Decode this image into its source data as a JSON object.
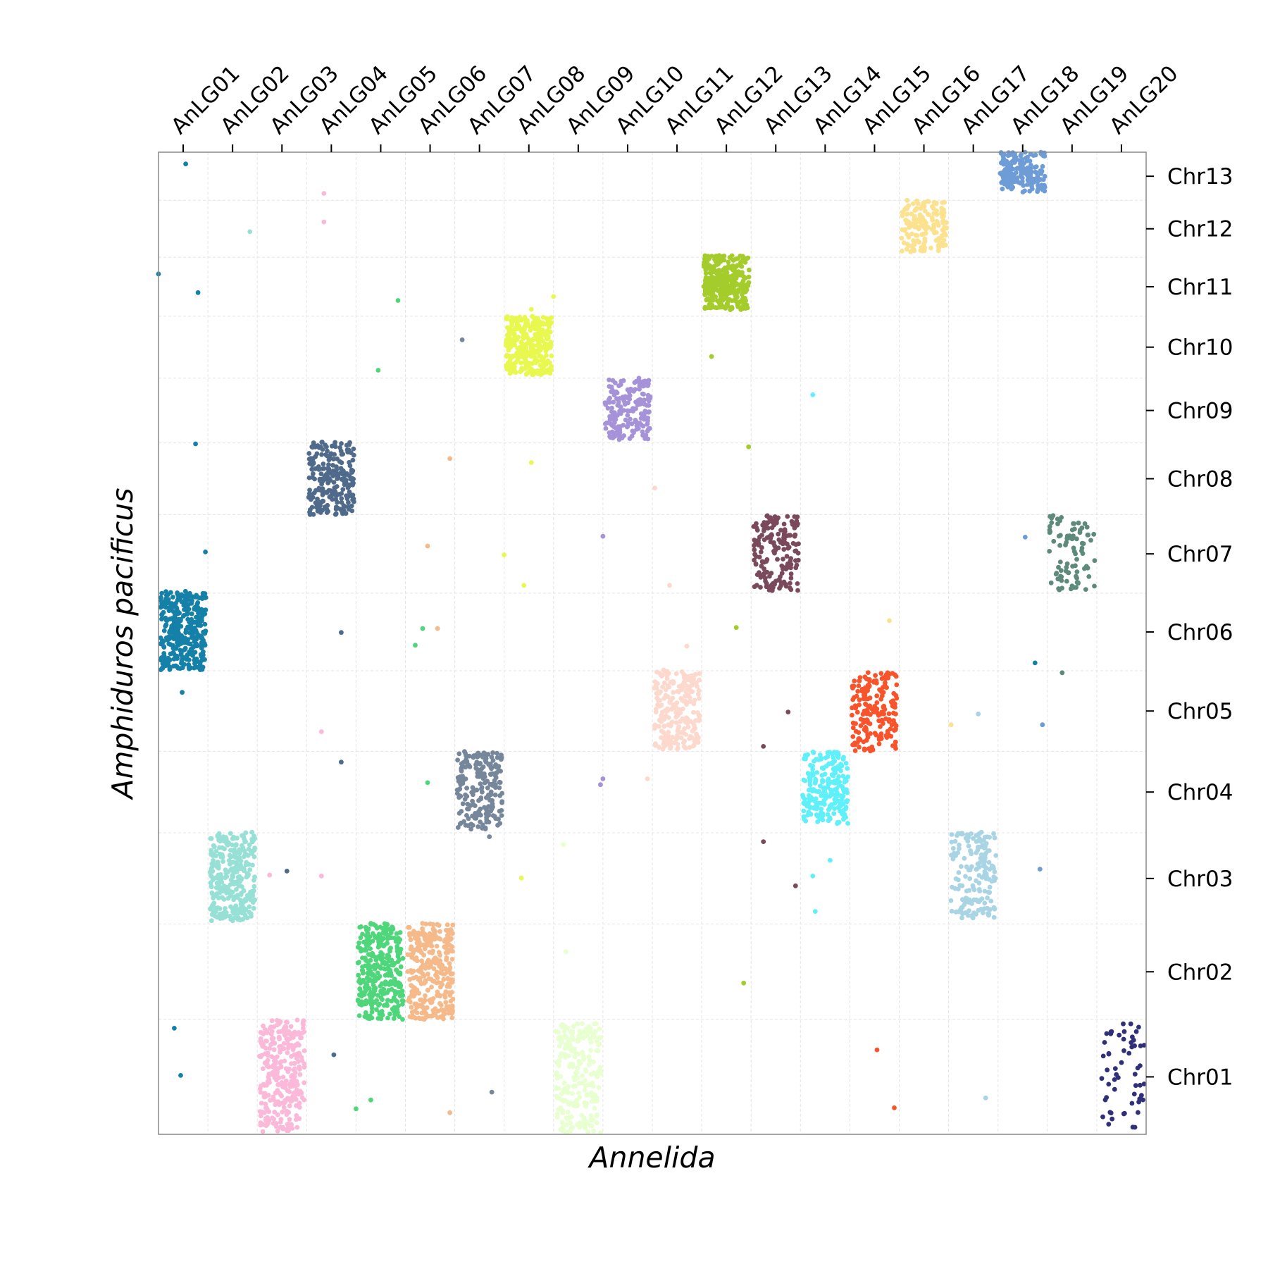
{
  "chart_data": {
    "type": "scatter",
    "title": "",
    "xlabel": "Annelida",
    "ylabel": "Amphiduros pacificus",
    "x_tick_labels": [
      "AnLG01",
      "AnLG02",
      "AnLG03",
      "AnLG04",
      "AnLG05",
      "AnLG06",
      "AnLG07",
      "AnLG08",
      "AnLG09",
      "AnLG10",
      "AnLG11",
      "AnLG12",
      "AnLG13",
      "AnLG14",
      "AnLG15",
      "AnLG16",
      "AnLG17",
      "AnLG18",
      "AnLG19",
      "AnLG20"
    ],
    "y_tick_labels": [
      "Chr01",
      "Chr02",
      "Chr03",
      "Chr04",
      "Chr05",
      "Chr06",
      "Chr07",
      "Chr08",
      "Chr09",
      "Chr10",
      "Chr11",
      "Chr12",
      "Chr13"
    ],
    "x_axis_position": "top",
    "y_axis_position": "right",
    "xlim": [
      0.5,
      20.5
    ],
    "ylim": [
      0,
      100
    ],
    "grid": true,
    "x_group_bounds": [
      [
        0.5,
        1.5
      ],
      [
        1.5,
        2.5
      ],
      [
        2.5,
        3.5
      ],
      [
        3.5,
        4.5
      ],
      [
        4.5,
        5.5
      ],
      [
        5.5,
        6.5
      ],
      [
        6.5,
        7.5
      ],
      [
        7.5,
        8.5
      ],
      [
        8.5,
        9.5
      ],
      [
        9.5,
        10.5
      ],
      [
        10.5,
        11.5
      ],
      [
        11.5,
        12.5
      ],
      [
        12.5,
        13.5
      ],
      [
        13.5,
        14.5
      ],
      [
        14.5,
        15.5
      ],
      [
        15.5,
        16.5
      ],
      [
        16.5,
        17.5
      ],
      [
        17.5,
        18.5
      ],
      [
        18.5,
        19.5
      ],
      [
        19.5,
        20.5
      ]
    ],
    "y_group_bounds": [
      [
        0,
        11.7
      ],
      [
        11.7,
        21.4
      ],
      [
        21.4,
        30.7
      ],
      [
        30.7,
        39.0
      ],
      [
        39.0,
        47.2
      ],
      [
        47.2,
        55.1
      ],
      [
        55.1,
        63.1
      ],
      [
        63.1,
        70.4
      ],
      [
        70.4,
        77.0
      ],
      [
        77.0,
        83.3
      ],
      [
        83.3,
        89.3
      ],
      [
        89.3,
        95.1
      ],
      [
        95.1,
        100
      ]
    ],
    "clusters": [
      {
        "xg": "AnLG01",
        "yg": "Chr06",
        "x": [
          0.5,
          1.5
        ],
        "y": [
          47.3,
          55.3
        ],
        "n": 360,
        "color": "#1580a8"
      },
      {
        "xg": "AnLG02",
        "yg": "Chr03",
        "x": [
          1.5,
          2.5
        ],
        "y": [
          21.7,
          30.8
        ],
        "n": 320,
        "color": "#96e0d6"
      },
      {
        "xg": "AnLG03",
        "yg": "Chr01",
        "x": [
          2.5,
          3.5
        ],
        "y": [
          0.1,
          11.7
        ],
        "n": 300,
        "color": "#fbb8d8"
      },
      {
        "xg": "AnLG04",
        "yg": "Chr08",
        "x": [
          3.5,
          4.5
        ],
        "y": [
          63.1,
          70.5
        ],
        "n": 240,
        "color": "#4f6a8a"
      },
      {
        "xg": "AnLG05",
        "yg": "Chr02",
        "x": [
          4.5,
          5.5
        ],
        "y": [
          11.7,
          21.5
        ],
        "n": 320,
        "color": "#4fd67a"
      },
      {
        "xg": "AnLG06",
        "yg": "Chr02",
        "x": [
          5.5,
          6.5
        ],
        "y": [
          11.7,
          21.5
        ],
        "n": 320,
        "color": "#f5b98a"
      },
      {
        "xg": "AnLG07",
        "yg": "Chr04",
        "x": [
          6.5,
          7.5
        ],
        "y": [
          31.0,
          39.0
        ],
        "n": 210,
        "color": "#76879b"
      },
      {
        "xg": "AnLG08",
        "yg": "Chr10",
        "x": [
          7.5,
          8.5
        ],
        "y": [
          77.3,
          83.3
        ],
        "n": 330,
        "color": "#e8f84f"
      },
      {
        "xg": "AnLG09",
        "yg": "Chr01",
        "x": [
          8.5,
          9.5
        ],
        "y": [
          0.1,
          11.3
        ],
        "n": 240,
        "color": "#e8ffd0"
      },
      {
        "xg": "AnLG10",
        "yg": "Chr09",
        "x": [
          9.5,
          10.5
        ],
        "y": [
          70.7,
          77.0
        ],
        "n": 190,
        "color": "#a592d8"
      },
      {
        "xg": "AnLG11",
        "yg": "Chr05",
        "x": [
          10.5,
          11.5
        ],
        "y": [
          39.2,
          47.3
        ],
        "n": 230,
        "color": "#fdd8cc"
      },
      {
        "xg": "AnLG12",
        "yg": "Chr11",
        "x": [
          11.5,
          12.5
        ],
        "y": [
          83.9,
          89.5
        ],
        "n": 320,
        "color": "#a4cc2a"
      },
      {
        "xg": "AnLG13",
        "yg": "Chr07",
        "x": [
          12.5,
          13.5
        ],
        "y": [
          55.3,
          63.1
        ],
        "n": 180,
        "color": "#7a4a5c"
      },
      {
        "xg": "AnLG14",
        "yg": "Chr04",
        "x": [
          13.5,
          14.5
        ],
        "y": [
          31.6,
          39.0
        ],
        "n": 220,
        "color": "#5ff0fa"
      },
      {
        "xg": "AnLG15",
        "yg": "Chr05",
        "x": [
          14.5,
          15.5
        ],
        "y": [
          39.0,
          47.2
        ],
        "n": 190,
        "color": "#f8532a"
      },
      {
        "xg": "AnLG16",
        "yg": "Chr12",
        "x": [
          15.5,
          16.5
        ],
        "y": [
          89.8,
          95.1
        ],
        "n": 160,
        "color": "#fce28e"
      },
      {
        "xg": "AnLG17",
        "yg": "Chr03",
        "x": [
          16.5,
          17.5
        ],
        "y": [
          21.9,
          30.8
        ],
        "n": 170,
        "color": "#a8d4e4"
      },
      {
        "xg": "AnLG18",
        "yg": "Chr13",
        "x": [
          17.5,
          18.5
        ],
        "y": [
          95.9,
          100
        ],
        "n": 180,
        "color": "#6d9cd6"
      },
      {
        "xg": "AnLG19",
        "yg": "Chr07",
        "x": [
          18.5,
          19.5
        ],
        "y": [
          55.3,
          63.1
        ],
        "n": 90,
        "color": "#5e8a7c"
      },
      {
        "xg": "AnLG20",
        "yg": "Chr01",
        "x": [
          19.5,
          20.5
        ],
        "y": [
          0.3,
          11.8
        ],
        "n": 60,
        "color": "#30307a"
      }
    ],
    "outliers": [
      {
        "x": 1.05,
        "y": 98.8,
        "color": "#1580a8"
      },
      {
        "x": 3.85,
        "y": 95.8,
        "color": "#fbb8d8"
      },
      {
        "x": 3.85,
        "y": 92.9,
        "color": "#fbb8d8"
      },
      {
        "x": 2.35,
        "y": 91.9,
        "color": "#96e0d6"
      },
      {
        "x": 0.5,
        "y": 87.6,
        "color": "#1580a8"
      },
      {
        "x": 1.3,
        "y": 85.7,
        "color": "#1580a8"
      },
      {
        "x": 5.35,
        "y": 84.9,
        "color": "#4fd67a"
      },
      {
        "x": 8.5,
        "y": 85.3,
        "color": "#e8f84f"
      },
      {
        "x": 8.05,
        "y": 84.0,
        "color": "#e8f84f"
      },
      {
        "x": 6.65,
        "y": 80.9,
        "color": "#76879b"
      },
      {
        "x": 11.7,
        "y": 79.2,
        "color": "#a4cc2a"
      },
      {
        "x": 4.95,
        "y": 77.8,
        "color": "#4fd67a"
      },
      {
        "x": 13.75,
        "y": 75.3,
        "color": "#5ff0fa"
      },
      {
        "x": 1.25,
        "y": 70.3,
        "color": "#1580a8"
      },
      {
        "x": 12.45,
        "y": 70.0,
        "color": "#a4cc2a"
      },
      {
        "x": 6.4,
        "y": 68.8,
        "color": "#f5b98a"
      },
      {
        "x": 8.05,
        "y": 68.4,
        "color": "#e8f84f"
      },
      {
        "x": 10.55,
        "y": 65.8,
        "color": "#fdd8cc"
      },
      {
        "x": 9.5,
        "y": 60.9,
        "color": "#a592d8"
      },
      {
        "x": 18.05,
        "y": 60.8,
        "color": "#6d9cd6"
      },
      {
        "x": 5.95,
        "y": 59.9,
        "color": "#f5b98a"
      },
      {
        "x": 1.45,
        "y": 59.3,
        "color": "#1580a8"
      },
      {
        "x": 7.5,
        "y": 59.0,
        "color": "#e8f84f"
      },
      {
        "x": 7.9,
        "y": 55.9,
        "color": "#e8f84f"
      },
      {
        "x": 10.85,
        "y": 55.9,
        "color": "#fdd8cc"
      },
      {
        "x": 15.3,
        "y": 52.3,
        "color": "#fce28e"
      },
      {
        "x": 12.2,
        "y": 51.6,
        "color": "#a4cc2a"
      },
      {
        "x": 5.85,
        "y": 51.5,
        "color": "#4fd67a"
      },
      {
        "x": 6.15,
        "y": 51.5,
        "color": "#f5b98a"
      },
      {
        "x": 4.2,
        "y": 51.1,
        "color": "#4f6a8a"
      },
      {
        "x": 5.7,
        "y": 49.8,
        "color": "#4fd67a"
      },
      {
        "x": 11.2,
        "y": 49.7,
        "color": "#fdd8cc"
      },
      {
        "x": 18.25,
        "y": 48.0,
        "color": "#1580a8"
      },
      {
        "x": 18.8,
        "y": 47.0,
        "color": "#5e8a7c"
      },
      {
        "x": 0.98,
        "y": 45.0,
        "color": "#1580a8"
      },
      {
        "x": 13.25,
        "y": 43.0,
        "color": "#7a4a5c"
      },
      {
        "x": 17.1,
        "y": 42.8,
        "color": "#a8d4e4"
      },
      {
        "x": 16.55,
        "y": 41.7,
        "color": "#fce28e"
      },
      {
        "x": 18.4,
        "y": 41.7,
        "color": "#6d9cd6"
      },
      {
        "x": 3.8,
        "y": 41.0,
        "color": "#fbb8d8"
      },
      {
        "x": 12.75,
        "y": 39.5,
        "color": "#7a4a5c"
      },
      {
        "x": 4.2,
        "y": 37.9,
        "color": "#4f6a8a"
      },
      {
        "x": 5.95,
        "y": 35.8,
        "color": "#4fd67a"
      },
      {
        "x": 9.5,
        "y": 36.2,
        "color": "#a592d8"
      },
      {
        "x": 10.4,
        "y": 36.2,
        "color": "#fdd8cc"
      },
      {
        "x": 9.45,
        "y": 35.6,
        "color": "#a592d8"
      },
      {
        "x": 7.2,
        "y": 30.3,
        "color": "#76879b"
      },
      {
        "x": 12.75,
        "y": 29.8,
        "color": "#7a4a5c"
      },
      {
        "x": 8.7,
        "y": 29.5,
        "color": "#e8ffd0"
      },
      {
        "x": 14.1,
        "y": 27.9,
        "color": "#5ff0fa"
      },
      {
        "x": 18.35,
        "y": 27.0,
        "color": "#6d9cd6"
      },
      {
        "x": 2.75,
        "y": 26.4,
        "color": "#fbb8d8"
      },
      {
        "x": 3.1,
        "y": 26.8,
        "color": "#4f6a8a"
      },
      {
        "x": 3.8,
        "y": 26.3,
        "color": "#fbb8d8"
      },
      {
        "x": 7.85,
        "y": 26.1,
        "color": "#e8f84f"
      },
      {
        "x": 13.75,
        "y": 26.3,
        "color": "#5ff0fa"
      },
      {
        "x": 13.4,
        "y": 25.3,
        "color": "#7a4a5c"
      },
      {
        "x": 13.8,
        "y": 22.7,
        "color": "#5ff0fa"
      },
      {
        "x": 8.75,
        "y": 18.6,
        "color": "#e8ffd0"
      },
      {
        "x": 12.35,
        "y": 15.4,
        "color": "#a4cc2a"
      },
      {
        "x": 0.82,
        "y": 10.8,
        "color": "#1580a8"
      },
      {
        "x": 4.05,
        "y": 8.1,
        "color": "#4f6a8a"
      },
      {
        "x": 15.05,
        "y": 8.6,
        "color": "#f8532a"
      },
      {
        "x": 0.95,
        "y": 6.0,
        "color": "#1580a8"
      },
      {
        "x": 7.25,
        "y": 4.3,
        "color": "#76879b"
      },
      {
        "x": 4.5,
        "y": 2.6,
        "color": "#4fd67a"
      },
      {
        "x": 4.8,
        "y": 3.5,
        "color": "#4fd67a"
      },
      {
        "x": 6.4,
        "y": 2.2,
        "color": "#f5b98a"
      },
      {
        "x": 15.4,
        "y": 2.7,
        "color": "#f8532a"
      },
      {
        "x": 17.25,
        "y": 3.7,
        "color": "#a8d4e4"
      }
    ]
  }
}
